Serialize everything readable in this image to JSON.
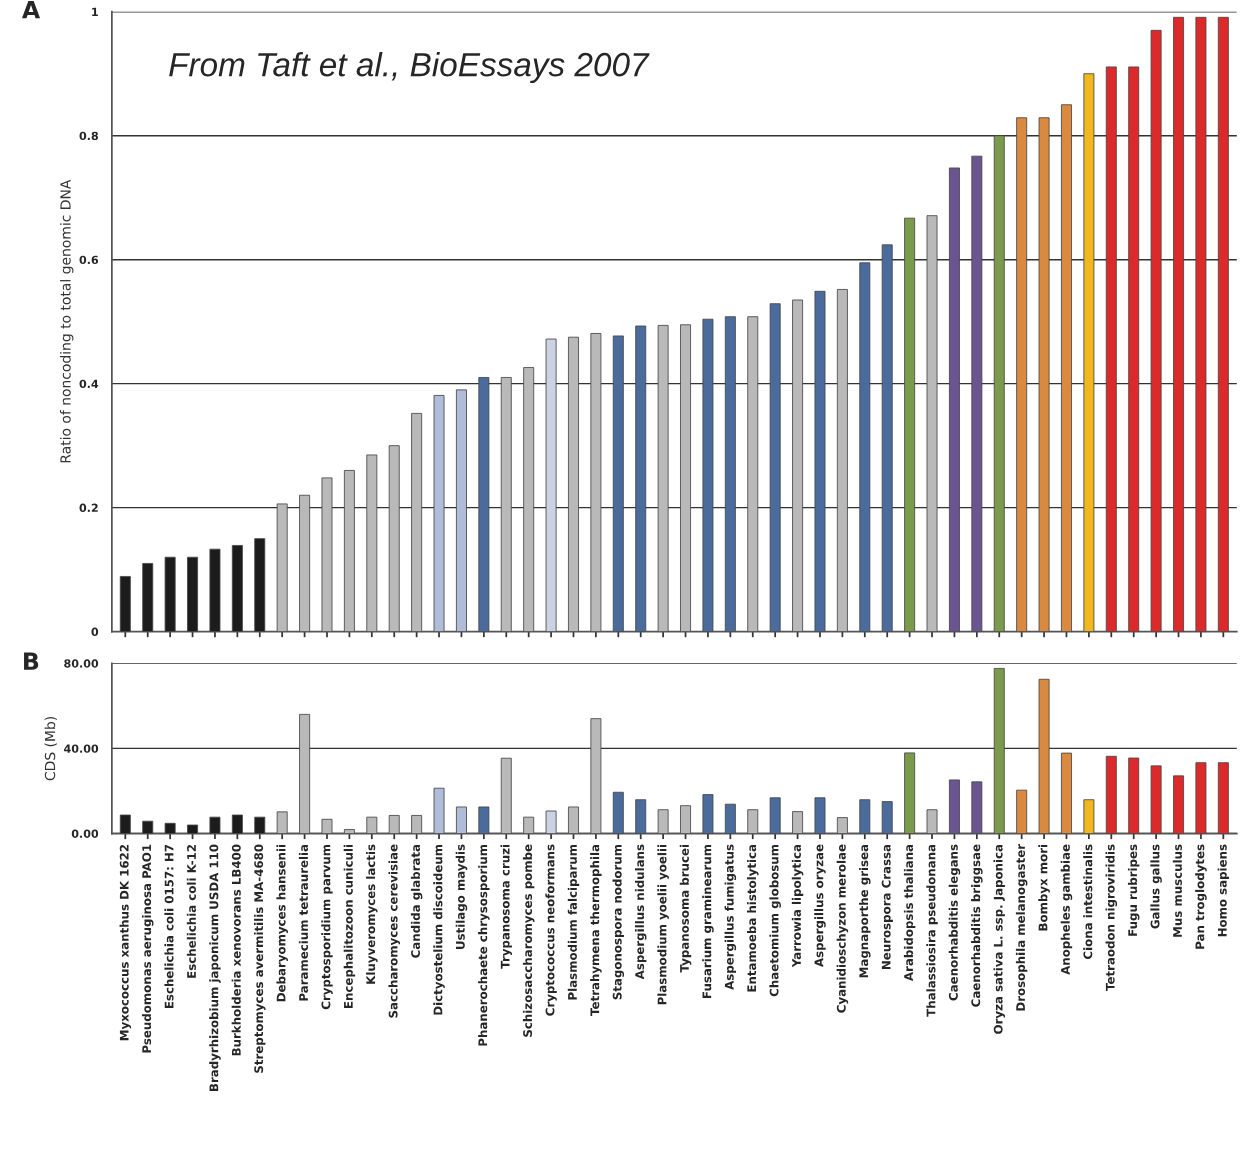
{
  "chart_data": [
    {
      "type": "bar",
      "title": "A",
      "ylabel": "Ratio of noncoding to total genomic DNA",
      "annotations": [
        "From Taft et al., BioEssays 2007"
      ],
      "categories": [
        null,
        null,
        null,
        null,
        null,
        null,
        null,
        null,
        null,
        null,
        null,
        null,
        null,
        null,
        null,
        null,
        null,
        null,
        null,
        null,
        null,
        null,
        null,
        null,
        null,
        null,
        null,
        null,
        null,
        null,
        null,
        null,
        null,
        null,
        null,
        null,
        null,
        null,
        null,
        null,
        null,
        null,
        null,
        null,
        null,
        null,
        null,
        null,
        null,
        null
      ],
      "values": [
        0.089,
        0.11,
        0.12,
        0.12,
        0.133,
        0.139,
        0.15,
        0.206,
        0.22,
        0.248,
        0.26,
        0.285,
        0.3,
        0.352,
        0.381,
        0.39,
        0.41,
        0.41,
        0.426,
        0.472,
        0.475,
        0.481,
        0.477,
        0.493,
        0.494,
        0.495,
        0.504,
        0.508,
        0.508,
        0.529,
        0.535,
        0.549,
        0.552,
        0.595,
        0.624,
        0.667,
        0.671,
        0.748,
        0.767,
        0.8,
        0.829,
        0.829,
        0.85,
        0.9,
        0.911,
        0.911,
        0.97,
        0.991,
        0.991,
        0.991
      ],
      "colors": [
        "#1c1c1c",
        "#1c1c1c",
        "#1c1c1c",
        "#1c1c1c",
        "#1c1c1c",
        "#1c1c1c",
        "#1c1c1c",
        "#b9b9b9",
        "#b9b9b9",
        "#b9b9b9",
        "#b9b9b9",
        "#b9b9b9",
        "#b9b9b9",
        "#b9b9b9",
        "#b0bcd8",
        "#b0bcd8",
        "#4a6b9c",
        "#b9b9b9",
        "#b9b9b9",
        "#cbd2e4",
        "#b9b9b9",
        "#b9b9b9",
        "#4a6b9c",
        "#4a6b9c",
        "#b9b9b9",
        "#b9b9b9",
        "#4a6b9c",
        "#4a6b9c",
        "#b9b9b9",
        "#4a6b9c",
        "#b9b9b9",
        "#4a6b9c",
        "#b9b9b9",
        "#4a6b9c",
        "#4a6b9c",
        "#7b9a4c",
        "#b9b9b9",
        "#6a5590",
        "#6a5590",
        "#7b9a4c",
        "#d98a40",
        "#d98a40",
        "#d98a40",
        "#f0b81e",
        "#dc2a2a",
        "#dc2a2a",
        "#dc2a2a",
        "#dc2a2a",
        "#dc2a2a",
        "#dc2a2a"
      ],
      "ylim": [
        0,
        1
      ],
      "yticks": [
        0,
        0.2,
        0.4,
        0.6,
        0.8,
        1
      ],
      "grid": "y",
      "tick_labels": "y"
    },
    {
      "type": "bar",
      "title": "B",
      "ylabel": "CDS (Mb)",
      "categories": [
        "Myxococcus xanthus DK 1622",
        "Pseudomonas aeruginosa PAO1",
        "Eschelichia coli 0157: H7",
        "Eschelichia coli K-12",
        "Bradyrhizobium japonicum USDA 110",
        "Burkholderia xenovorans LB400",
        "Streptomyces avermitilis MA-4680",
        "Debaryomyces hansenii",
        "Paramecium tetraurelia",
        "Cryptosporidium parvum",
        "Encephalitozoon cuniculi",
        "Kluyveromyces lactis",
        "Saccharomyces cerevisiae",
        "Candida glabrata",
        "Dictyostelium discoideum",
        "Ustilago maydis",
        "Phanerochaete chrysosporium",
        "Trypanosoma cruzi",
        "Schizosaccharomyces pombe",
        "Cryptococcus neoformans",
        "Plasmodium falciparum",
        "Tetrahymena thermophila",
        "Stagonospora nodorum",
        "Aspergillus nidulans",
        "Plasmodium yoelii yoelii",
        "Typanosoma brucei",
        "Fusarium graminearum",
        "Aspergillus fumigatus",
        "Entamoeba histolytica",
        "Chaetomium globosum",
        "Yarrowia lipolytica",
        "Aspergillus oryzae",
        "Cyanidioschyzon merolae",
        "Magnaporthe grisea",
        "Neurospora Crassa",
        "Arabidopsis thaliana",
        "Thalassiosira pseudonana",
        "Caenorhabditis elegans",
        "Caenorhabditis briggsae",
        "Oryza sativa L. ssp. Japonica",
        "Drosophila melanogaster",
        "Bombyx mori",
        "Anopheles gambiae",
        "Ciona intestinalis",
        "Tetraodon nigroviridis",
        "Fugu rubripes",
        "Gallus gallus",
        "Mus musculus",
        "Pan troglodytes",
        "Homo sapiens"
      ],
      "values": [
        8.7,
        5.8,
        4.8,
        4.0,
        7.7,
        8.7,
        7.7,
        10.2,
        56,
        6.7,
        1.9,
        7.7,
        8.5,
        8.5,
        21.3,
        12.5,
        12.5,
        35.4,
        7.7,
        10.6,
        12.5,
        54,
        19.4,
        15.9,
        11.2,
        13.1,
        18.3,
        13.8,
        11.2,
        16.8,
        10.3,
        16.8,
        7.5,
        15.9,
        15.0,
        37.9,
        11.2,
        25.2,
        24.3,
        77.6,
        20.4,
        72.5,
        37.8,
        15.9,
        36.3,
        35.5,
        31.8,
        27.1,
        33.3,
        33.3
      ],
      "colors": [
        "#1c1c1c",
        "#1c1c1c",
        "#1c1c1c",
        "#1c1c1c",
        "#1c1c1c",
        "#1c1c1c",
        "#1c1c1c",
        "#b9b9b9",
        "#b9b9b9",
        "#b9b9b9",
        "#b9b9b9",
        "#b9b9b9",
        "#b9b9b9",
        "#b9b9b9",
        "#b0bcd8",
        "#b0bcd8",
        "#4a6b9c",
        "#b9b9b9",
        "#b9b9b9",
        "#cbd2e4",
        "#b9b9b9",
        "#b9b9b9",
        "#4a6b9c",
        "#4a6b9c",
        "#b9b9b9",
        "#b9b9b9",
        "#4a6b9c",
        "#4a6b9c",
        "#b9b9b9",
        "#4a6b9c",
        "#b9b9b9",
        "#4a6b9c",
        "#b9b9b9",
        "#4a6b9c",
        "#4a6b9c",
        "#7b9a4c",
        "#b9b9b9",
        "#6a5590",
        "#6a5590",
        "#7b9a4c",
        "#d98a40",
        "#d98a40",
        "#d98a40",
        "#f0b81e",
        "#dc2a2a",
        "#dc2a2a",
        "#dc2a2a",
        "#dc2a2a",
        "#dc2a2a",
        "#dc2a2a"
      ],
      "ylim": [
        0,
        80
      ],
      "yticks": [
        {
          "value": 0,
          "label": "0.00"
        },
        {
          "value": 40,
          "label": "40.00"
        },
        {
          "value": 80,
          "label": "80.00"
        }
      ],
      "grid": "y"
    }
  ]
}
